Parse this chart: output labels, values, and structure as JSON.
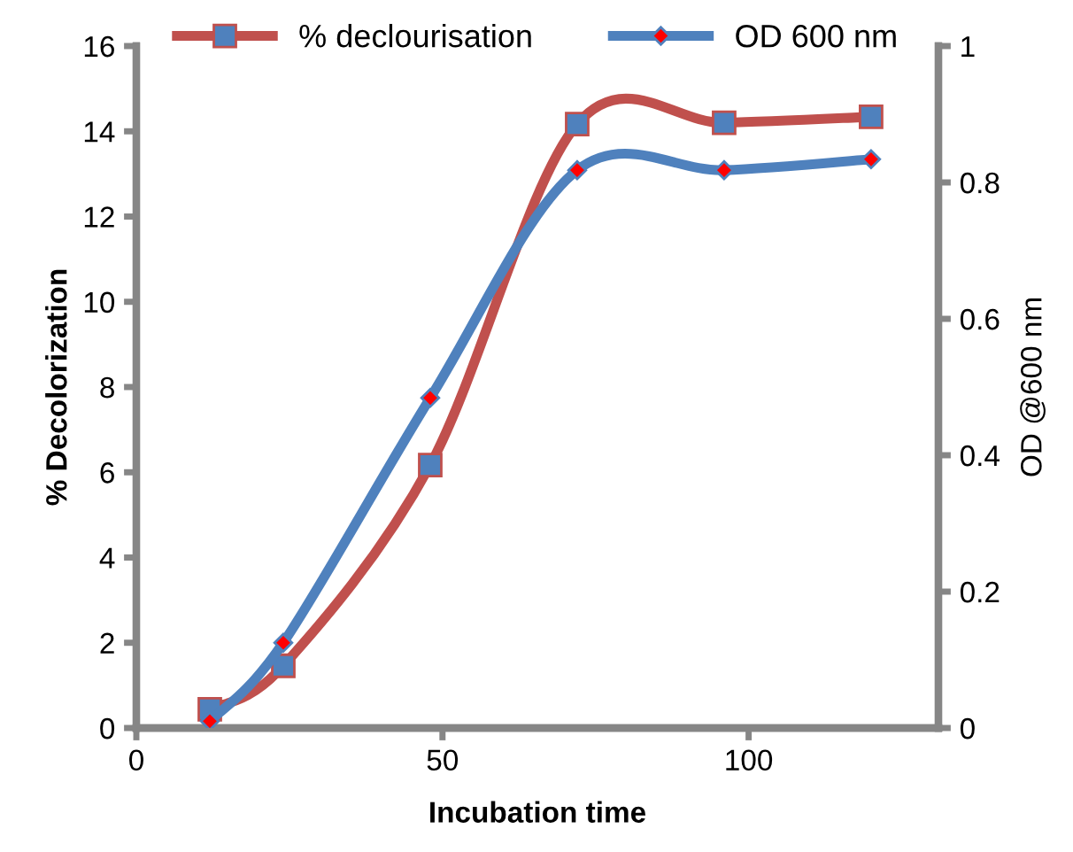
{
  "chart_data": {
    "type": "line",
    "xlabel": "Incubation time",
    "ylabel": "% Decolorization",
    "y2label": "OD @600 nm",
    "x": [
      12,
      24,
      48,
      72,
      96,
      120
    ],
    "series": [
      {
        "name": "% declourisation",
        "color": "#c0504d",
        "marker": "square",
        "values": [
          0.44,
          1.46,
          6.17,
          14.17,
          14.2,
          14.34
        ]
      },
      {
        "name": "OD 600 nm",
        "color": "#4f81bd",
        "marker": "diamond",
        "axis": "y2",
        "values": [
          0.01,
          0.125,
          0.484,
          0.818,
          0.818,
          0.834
        ]
      }
    ],
    "xlim": [
      0,
      131
    ],
    "xticks": [
      0,
      50,
      100
    ],
    "ylim": [
      0,
      16
    ],
    "yticks": [
      0,
      2,
      4,
      6,
      8,
      10,
      12,
      14,
      16
    ],
    "y2lim": [
      0,
      1
    ],
    "y2ticks": [
      0,
      {
        "value": 0.2,
        "label": "0.2"
      },
      {
        "value": 0.4,
        "label": "0.4"
      },
      {
        "value": 0.6,
        "label": "0.6"
      },
      {
        "value": 0.8,
        "label": "0.8"
      },
      1
    ],
    "grid": false,
    "legend": "top",
    "line_style": "solid"
  }
}
